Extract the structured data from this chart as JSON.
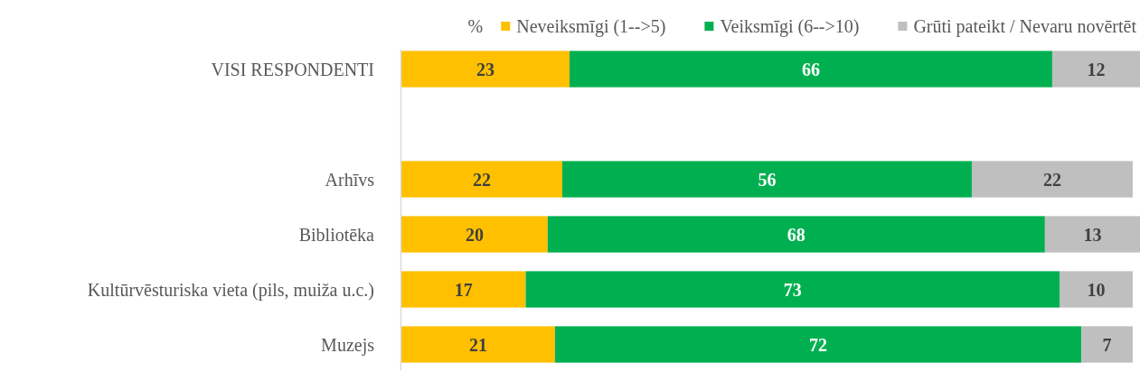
{
  "chart_data": {
    "type": "bar",
    "orientation": "horizontal",
    "stacked": true,
    "legend_title": "%",
    "legend": "top",
    "categories": [
      "VISI RESPONDENTI",
      null,
      "Arhīvs",
      "Bibliotēka",
      "Kultūrvēsturiska vieta (pils, muiža u.c.)",
      "Muzejs"
    ],
    "series": [
      {
        "name": "Neveiksmīgi (1-->5)",
        "color": "#ffc000",
        "values": [
          23,
          null,
          22,
          20,
          17,
          21
        ]
      },
      {
        "name": "Veiksmīgi (6-->10)",
        "color": "#00b050",
        "values": [
          66,
          null,
          56,
          68,
          73,
          72
        ]
      },
      {
        "name": "Grūti pateikt / Nevaru novērtēt",
        "color": "#bfbfbf",
        "values": [
          12,
          null,
          22,
          13,
          10,
          7
        ]
      }
    ],
    "xlim": [
      0,
      101
    ],
    "tick_labels": "y",
    "data_labels": true
  }
}
